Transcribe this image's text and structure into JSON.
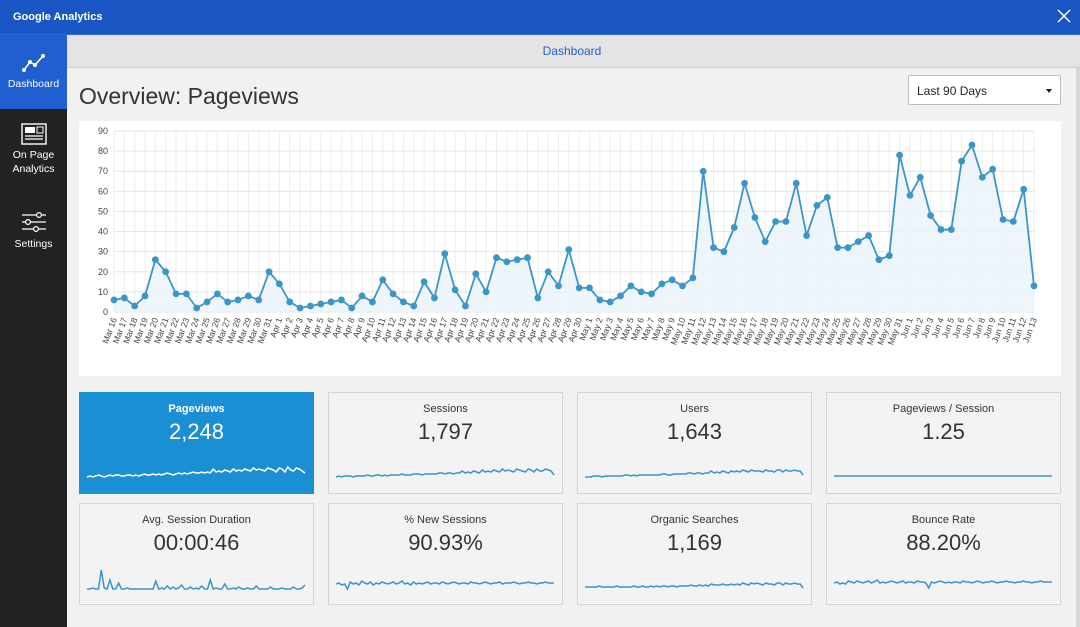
{
  "window": {
    "title": "Google Analytics"
  },
  "sidebar": {
    "items": [
      {
        "label": "Dashboard"
      },
      {
        "label_line1": "On Page",
        "label_line2": "Analytics"
      },
      {
        "label": "Settings"
      }
    ]
  },
  "header": {
    "breadcrumb": "Dashboard"
  },
  "page": {
    "title": "Overview: Pageviews"
  },
  "range": {
    "selected": "Last 90 Days"
  },
  "chart_data": {
    "type": "line",
    "title": "",
    "xlabel": "",
    "ylabel": "",
    "ylim": [
      0,
      90
    ],
    "yticks": [
      "0",
      "10",
      "20",
      "30",
      "40",
      "50",
      "60",
      "70",
      "80",
      "90"
    ],
    "x": [
      "Mar 16",
      "Mar 17",
      "Mar 18",
      "Mar 19",
      "Mar 20",
      "Mar 21",
      "Mar 22",
      "Mar 23",
      "Mar 24",
      "Mar 25",
      "Mar 26",
      "Mar 27",
      "Mar 28",
      "Mar 29",
      "Mar 30",
      "Mar 31",
      "Apr 1",
      "Apr 2",
      "Apr 3",
      "Apr 4",
      "Apr 5",
      "Apr 6",
      "Apr 7",
      "Apr 8",
      "Apr 9",
      "Apr 10",
      "Apr 11",
      "Apr 12",
      "Apr 13",
      "Apr 14",
      "Apr 15",
      "Apr 16",
      "Apr 17",
      "Apr 18",
      "Apr 19",
      "Apr 20",
      "Apr 21",
      "Apr 22",
      "Apr 23",
      "Apr 24",
      "Apr 25",
      "Apr 26",
      "Apr 27",
      "Apr 28",
      "Apr 29",
      "Apr 30",
      "May 1",
      "May 2",
      "May 3",
      "May 4",
      "May 5",
      "May 6",
      "May 7",
      "May 8",
      "May 9",
      "May 10",
      "May 11",
      "May 12",
      "May 13",
      "May 14",
      "May 15",
      "May 16",
      "May 17",
      "May 18",
      "May 19",
      "May 20",
      "May 21",
      "May 22",
      "May 23",
      "May 24",
      "May 25",
      "May 26",
      "May 27",
      "May 28",
      "May 29",
      "May 30",
      "May 31",
      "Jun 1",
      "Jun 2",
      "Jun 3",
      "Jun 4",
      "Jun 5",
      "Jun 6",
      "Jun 7",
      "Jun 8",
      "Jun 9",
      "Jun 10",
      "Jun 11",
      "Jun 12",
      "Jun 13"
    ],
    "series": [
      {
        "name": "Pageviews",
        "values": [
          6,
          7,
          3,
          8,
          26,
          20,
          9,
          9,
          2,
          5,
          9,
          5,
          6,
          8,
          6,
          20,
          14,
          5,
          2,
          3,
          4,
          5,
          6,
          2,
          8,
          5,
          16,
          9,
          5,
          3,
          15,
          7,
          29,
          11,
          3,
          19,
          10,
          27,
          25,
          26,
          27,
          7,
          20,
          13,
          31,
          12,
          12,
          6,
          5,
          8,
          13,
          10,
          9,
          14,
          16,
          13,
          17,
          70,
          32,
          30,
          42,
          64,
          47,
          35,
          45,
          45,
          64,
          38,
          53,
          57,
          32,
          32,
          35,
          38,
          26,
          28,
          78,
          58,
          67,
          48,
          41,
          41,
          75,
          83,
          67,
          71,
          46,
          45,
          61,
          13
        ]
      }
    ],
    "color": "#3a96c8"
  },
  "metrics": [
    {
      "label": "Pageviews",
      "value": "2,248"
    },
    {
      "label": "Sessions",
      "value": "1,797"
    },
    {
      "label": "Users",
      "value": "1,643"
    },
    {
      "label": "Pageviews / Session",
      "value": "1.25"
    },
    {
      "label": "Avg. Session Duration",
      "value": "00:00:46"
    },
    {
      "label": "% New Sessions",
      "value": "90.93%"
    },
    {
      "label": "Organic Searches",
      "value": "1,169"
    },
    {
      "label": "Bounce Rate",
      "value": "88.20%"
    }
  ],
  "sparklines": [
    [
      4,
      5,
      4,
      5,
      6,
      5,
      4,
      5,
      6,
      5,
      6,
      6,
      5,
      5,
      6,
      6,
      5,
      6,
      5,
      6,
      7,
      6,
      6,
      7,
      6,
      7,
      6,
      7,
      8,
      7,
      6,
      7,
      8,
      7,
      8,
      7,
      8,
      9,
      8,
      8,
      9,
      8,
      9,
      8,
      12,
      9,
      10,
      9,
      11,
      10,
      9,
      12,
      10,
      11,
      10,
      12,
      11,
      10,
      13,
      11,
      12,
      11,
      10,
      13,
      12,
      11,
      9,
      13,
      12,
      9,
      14,
      11,
      10,
      13,
      12,
      10,
      8
    ],
    [
      4,
      5,
      4,
      5,
      5,
      5,
      4,
      5,
      5,
      5,
      5,
      6,
      5,
      5,
      6,
      6,
      5,
      6,
      5,
      6,
      6,
      6,
      6,
      7,
      6,
      6,
      6,
      7,
      7,
      7,
      6,
      7,
      7,
      7,
      7,
      7,
      8,
      8,
      7,
      8,
      8,
      7,
      8,
      8,
      10,
      8,
      9,
      8,
      10,
      9,
      8,
      11,
      9,
      10,
      9,
      11,
      10,
      9,
      12,
      10,
      11,
      10,
      9,
      12,
      11,
      10,
      9,
      12,
      11,
      9,
      12,
      10,
      10,
      12,
      11,
      10,
      6
    ],
    [
      4,
      4,
      4,
      5,
      5,
      5,
      4,
      5,
      5,
      5,
      5,
      5,
      5,
      5,
      6,
      6,
      5,
      6,
      5,
      6,
      6,
      6,
      6,
      6,
      6,
      6,
      6,
      7,
      7,
      6,
      6,
      7,
      7,
      7,
      7,
      7,
      8,
      8,
      7,
      8,
      8,
      7,
      8,
      8,
      10,
      8,
      9,
      8,
      10,
      9,
      8,
      10,
      9,
      10,
      9,
      11,
      10,
      9,
      11,
      10,
      10,
      10,
      9,
      11,
      10,
      10,
      9,
      11,
      11,
      9,
      11,
      10,
      10,
      11,
      10,
      10,
      6
    ],
    [
      5,
      5,
      5,
      5,
      5,
      5,
      5,
      5,
      5,
      5,
      5,
      5,
      5,
      5,
      5,
      5,
      5,
      5,
      5,
      5,
      5,
      5,
      5,
      5,
      5,
      5,
      5,
      5,
      5,
      5,
      5,
      5,
      5,
      5,
      5,
      5,
      5,
      5,
      5,
      5,
      5,
      5,
      5,
      5,
      5,
      5,
      5,
      5,
      5,
      5,
      5,
      5,
      5,
      5,
      5,
      5,
      5,
      5,
      5,
      5,
      5,
      5,
      5,
      5,
      5,
      5,
      5,
      5,
      5,
      5,
      5,
      5,
      5,
      5,
      5,
      5,
      5
    ],
    [
      3,
      3,
      4,
      3,
      3,
      22,
      4,
      3,
      12,
      3,
      3,
      9,
      3,
      3,
      4,
      3,
      3,
      3,
      3,
      3,
      3,
      3,
      3,
      3,
      11,
      3,
      4,
      3,
      6,
      3,
      5,
      3,
      4,
      7,
      3,
      3,
      5,
      3,
      4,
      3,
      6,
      3,
      3,
      12,
      3,
      4,
      3,
      3,
      8,
      3,
      3,
      4,
      3,
      5,
      3,
      3,
      4,
      3,
      3,
      6,
      3,
      3,
      3,
      3,
      5,
      3,
      3,
      3,
      4,
      3,
      3,
      3,
      5,
      3,
      3,
      4,
      7
    ],
    [
      8,
      9,
      7,
      8,
      3,
      10,
      8,
      9,
      7,
      11,
      9,
      8,
      10,
      7,
      9,
      8,
      10,
      9,
      8,
      9,
      10,
      8,
      9,
      11,
      8,
      9,
      7,
      10,
      8,
      9,
      8,
      9,
      10,
      8,
      9,
      9,
      8,
      10,
      9,
      8,
      9,
      10,
      9,
      8,
      9,
      9,
      8,
      10,
      9,
      9,
      8,
      9,
      10,
      9,
      8,
      9,
      9,
      10,
      8,
      9,
      9,
      9,
      10,
      9,
      8,
      9,
      9,
      10,
      9,
      9,
      8,
      9,
      9,
      10,
      9,
      9,
      9
    ],
    [
      5,
      5,
      5,
      5,
      5,
      6,
      5,
      5,
      5,
      5,
      5,
      6,
      5,
      5,
      5,
      5,
      5,
      6,
      5,
      5,
      6,
      5,
      5,
      6,
      5,
      6,
      5,
      6,
      6,
      5,
      6,
      6,
      5,
      6,
      6,
      6,
      6,
      7,
      6,
      6,
      7,
      6,
      7,
      6,
      8,
      7,
      7,
      7,
      8,
      7,
      7,
      8,
      7,
      8,
      7,
      9,
      8,
      7,
      9,
      8,
      9,
      8,
      7,
      9,
      8,
      8,
      7,
      9,
      9,
      7,
      9,
      8,
      8,
      9,
      8,
      8,
      4
    ],
    [
      9,
      10,
      8,
      9,
      8,
      11,
      10,
      9,
      11,
      10,
      9,
      10,
      11,
      9,
      10,
      12,
      9,
      10,
      9,
      10,
      11,
      10,
      9,
      10,
      11,
      9,
      10,
      10,
      9,
      11,
      10,
      10,
      9,
      4,
      10,
      9,
      10,
      11,
      10,
      9,
      10,
      9,
      10,
      10,
      9,
      11,
      10,
      10,
      9,
      10,
      11,
      10,
      9,
      10,
      10,
      11,
      10,
      9,
      10,
      10,
      11,
      10,
      10,
      9,
      10,
      10,
      11,
      10,
      10,
      9,
      10,
      10,
      11,
      10,
      10,
      10,
      10
    ]
  ],
  "colors": {
    "accent": "#1a8fd4",
    "titlebar": "#1b57c4",
    "line": "#3a96c8"
  }
}
